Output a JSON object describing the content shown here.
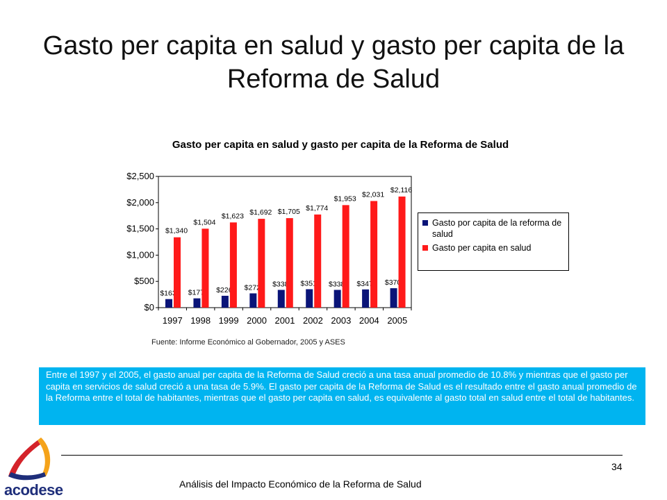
{
  "slide": {
    "title": "Gasto per capita en salud y gasto per capita de la Reforma de Salud",
    "note": "Entre el 1997 y el 2005, el gasto anual per capita de la Reforma de Salud creció a una tasa anual promedio de  10.8% y mientras que el gasto per capita en servicios de salud creció a una tasa de 5.9%. El gasto per capita de la Reforma de Salud es el resultado entre el gasto anual promedio de la Reforma entre el total de habitantes, mientras que el gasto per capita en salud, es equivalente al gasto total en salud entre el total de habitantes.",
    "page_number": "34",
    "footer": "Análisis del Impacto Económico de la Reforma de Salud",
    "logo_text": "acodese"
  },
  "chart_data": {
    "type": "bar",
    "title": "Gasto per capita en salud y gasto per capita de la Reforma de Salud",
    "source": "Fuente: Informe Económico al Gobernador, 2005 y ASES",
    "categories": [
      "1997",
      "1998",
      "1999",
      "2000",
      "2001",
      "2002",
      "2003",
      "2004",
      "2005"
    ],
    "series": [
      {
        "name": "Gasto por capita  de la reforma de salud",
        "color": "#0a1478",
        "values": [
          163,
          177,
          226,
          272,
          338,
          351,
          338,
          347,
          370
        ],
        "labels": [
          "$163",
          "$177",
          "$226",
          "$272",
          "$338",
          "$351",
          "$338",
          "$347",
          "$370"
        ]
      },
      {
        "name": "Gasto per capita en salud",
        "color": "#ff1a1a",
        "values": [
          1340,
          1504,
          1623,
          1692,
          1705,
          1774,
          1953,
          2031,
          2116
        ],
        "labels": [
          "$1,340",
          "$1,504",
          "$1,623",
          "$1,692",
          "$1,705",
          "$1,774",
          "$1,953",
          "$2,031",
          "$2,116"
        ]
      }
    ],
    "ylim": [
      0,
      2500
    ],
    "yticks": [
      0,
      500,
      1000,
      1500,
      2000,
      2500
    ],
    "ytick_labels": [
      "$0",
      "$500",
      "$1,000",
      "$1,500",
      "$2,000",
      "$2,500"
    ],
    "grid": false,
    "legend": "right"
  }
}
